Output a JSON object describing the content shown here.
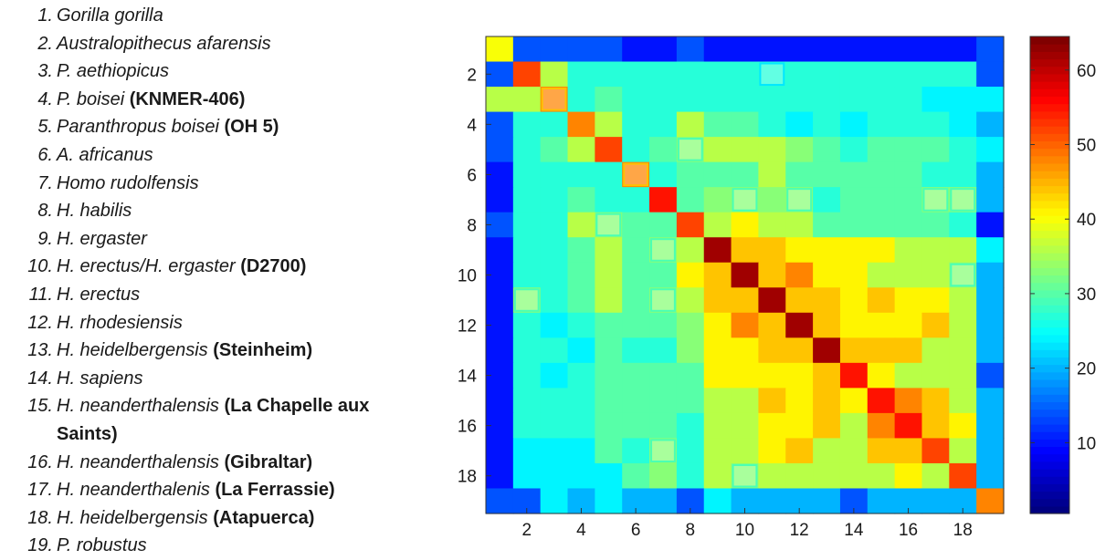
{
  "legend_entries": [
    {
      "num": "1.",
      "name": "Gorilla gorilla",
      "specimen": ""
    },
    {
      "num": "2.",
      "name": "Australopithecus afarensis",
      "specimen": ""
    },
    {
      "num": "3.",
      "name": "P. aethiopicus",
      "specimen": ""
    },
    {
      "num": "4.",
      "name": "P. boisei",
      "specimen": "(KNMER-406)"
    },
    {
      "num": "5.",
      "name": "Paranthropus boisei",
      "specimen": "(OH 5)"
    },
    {
      "num": "6.",
      "name": "A. africanus",
      "specimen": ""
    },
    {
      "num": "7.",
      "name": "Homo rudolfensis",
      "specimen": ""
    },
    {
      "num": "8.",
      "name": "H. habilis",
      "specimen": ""
    },
    {
      "num": "9.",
      "name": "H. ergaster",
      "specimen": ""
    },
    {
      "num": "10.",
      "name": "H. erectus/H. ergaster",
      "specimen": "(D2700)"
    },
    {
      "num": "11.",
      "name": "H. erectus",
      "specimen": ""
    },
    {
      "num": "12.",
      "name": "H. rhodesiensis",
      "specimen": ""
    },
    {
      "num": "13.",
      "name": "H. heidelbergensis",
      "specimen": "(Steinheim)"
    },
    {
      "num": "14.",
      "name": "H. sapiens",
      "specimen": ""
    },
    {
      "num": "15.",
      "name": "H. neanderthalensis",
      "specimen": "(La Chapelle aux",
      "specimen_cont": "Saints)"
    },
    {
      "num": "16.",
      "name": "H. neanderthalensis",
      "specimen": "(Gibraltar)"
    },
    {
      "num": "17.",
      "name": "H. neanderthalenis",
      "specimen": "(La Ferrassie)"
    },
    {
      "num": "18.",
      "name": "H. heidelbergensis",
      "specimen": "(Atapuerca)"
    },
    {
      "num": "19.",
      "name": "P. robustus",
      "specimen": ""
    }
  ],
  "chart_data": {
    "type": "heatmap",
    "title": "",
    "xlabel": "",
    "ylabel": "",
    "x_ticks": [
      2,
      4,
      6,
      8,
      10,
      12,
      14,
      16,
      18
    ],
    "y_ticks": [
      2,
      4,
      6,
      8,
      10,
      12,
      14,
      16,
      18
    ],
    "size": 19,
    "grid": false,
    "colorbar": {
      "placement": "right",
      "range": [
        1,
        64
      ],
      "ticks": [
        10,
        20,
        30,
        40,
        50,
        60
      ]
    },
    "matrix": [
      [
        40,
        14,
        14,
        14,
        14,
        10,
        10,
        14,
        10,
        10,
        10,
        10,
        10,
        10,
        10,
        10,
        10,
        10,
        14
      ],
      [
        14,
        52,
        36,
        27,
        27,
        27,
        27,
        27,
        27,
        27,
        27,
        27,
        27,
        27,
        27,
        27,
        27,
        27,
        14
      ],
      [
        36,
        36,
        48,
        27,
        30,
        27,
        27,
        27,
        27,
        27,
        27,
        27,
        27,
        27,
        27,
        27,
        24,
        24,
        24
      ],
      [
        14,
        27,
        27,
        48,
        36,
        27,
        27,
        36,
        30,
        30,
        27,
        24,
        27,
        24,
        27,
        27,
        27,
        24,
        20
      ],
      [
        14,
        27,
        30,
        36,
        52,
        27,
        30,
        33,
        36,
        36,
        36,
        33,
        30,
        27,
        30,
        30,
        30,
        27,
        24
      ],
      [
        10,
        27,
        27,
        27,
        27,
        48,
        27,
        30,
        30,
        30,
        36,
        30,
        30,
        30,
        30,
        30,
        27,
        27,
        20
      ],
      [
        10,
        27,
        27,
        30,
        27,
        27,
        55,
        30,
        33,
        33,
        33,
        33,
        27,
        30,
        30,
        30,
        33,
        33,
        20
      ],
      [
        14,
        27,
        27,
        36,
        33,
        30,
        30,
        52,
        36,
        41,
        36,
        36,
        30,
        30,
        30,
        30,
        30,
        27,
        10
      ],
      [
        10,
        27,
        27,
        30,
        36,
        30,
        33,
        36,
        62,
        44,
        44,
        41,
        41,
        41,
        41,
        36,
        36,
        36,
        24
      ],
      [
        10,
        27,
        27,
        30,
        36,
        30,
        30,
        41,
        44,
        62,
        44,
        48,
        41,
        41,
        36,
        36,
        36,
        33,
        20
      ],
      [
        10,
        33,
        27,
        30,
        36,
        30,
        33,
        36,
        44,
        44,
        62,
        44,
        44,
        41,
        44,
        41,
        41,
        36,
        20
      ],
      [
        10,
        27,
        24,
        27,
        30,
        30,
        30,
        33,
        41,
        48,
        44,
        62,
        44,
        41,
        41,
        41,
        44,
        36,
        20
      ],
      [
        10,
        27,
        27,
        24,
        30,
        27,
        27,
        33,
        41,
        41,
        44,
        44,
        62,
        44,
        44,
        44,
        36,
        36,
        20
      ],
      [
        10,
        27,
        24,
        27,
        30,
        30,
        30,
        30,
        41,
        41,
        41,
        41,
        44,
        55,
        41,
        36,
        36,
        36,
        14
      ],
      [
        10,
        27,
        27,
        27,
        30,
        30,
        30,
        30,
        36,
        36,
        44,
        41,
        44,
        41,
        55,
        48,
        44,
        36,
        20
      ],
      [
        10,
        27,
        27,
        27,
        30,
        30,
        30,
        27,
        36,
        36,
        41,
        41,
        44,
        36,
        48,
        55,
        44,
        41,
        20
      ],
      [
        10,
        24,
        24,
        24,
        30,
        27,
        33,
        27,
        36,
        36,
        41,
        44,
        36,
        36,
        44,
        44,
        52,
        36,
        20
      ],
      [
        10,
        24,
        24,
        24,
        24,
        30,
        33,
        27,
        36,
        33,
        36,
        36,
        36,
        36,
        36,
        41,
        36,
        52,
        20
      ],
      [
        14,
        14,
        24,
        20,
        24,
        20,
        20,
        14,
        24,
        20,
        20,
        20,
        20,
        14,
        20,
        20,
        20,
        20,
        48
      ]
    ],
    "highlight_cells": [
      [
        2,
        11
      ],
      [
        3,
        3
      ],
      [
        5,
        8
      ],
      [
        6,
        6
      ],
      [
        7,
        10
      ],
      [
        7,
        12
      ],
      [
        7,
        17
      ],
      [
        7,
        18
      ],
      [
        8,
        5
      ],
      [
        9,
        7
      ],
      [
        10,
        18
      ],
      [
        11,
        2
      ],
      [
        11,
        7
      ],
      [
        17,
        7
      ],
      [
        18,
        10
      ]
    ]
  }
}
